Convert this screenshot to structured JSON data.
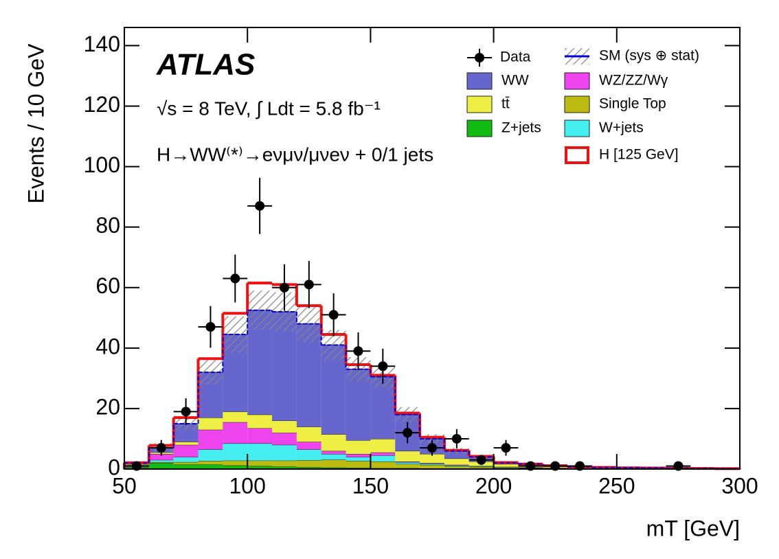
{
  "chart_data": {
    "type": "stacked_histogram",
    "title": "ATLAS",
    "annotations": [
      "√s = 8 TeV, ∫ Ldt = 5.8 fb⁻¹",
      "H→WW⁽*⁾→eνμν/μνeν + 0/1 jets"
    ],
    "x_label": "mT [GeV]",
    "y_label": "Events / 10 GeV",
    "bins": [
      50,
      60,
      70,
      80,
      90,
      100,
      110,
      120,
      130,
      140,
      150,
      160,
      170,
      180,
      190,
      200,
      210,
      220,
      230,
      240,
      250,
      260,
      270,
      280,
      290,
      300
    ],
    "xlim": [
      50,
      300
    ],
    "xticks": [
      50,
      100,
      150,
      200,
      250,
      300
    ],
    "ylim": [
      0,
      146
    ],
    "yticks": [
      0,
      20,
      40,
      60,
      80,
      100,
      120,
      140
    ],
    "series": [
      {
        "name": "Z+jets",
        "color": "#11bb11",
        "values": [
          0.5,
          2,
          1.5,
          1.5,
          1.2,
          1,
          0.8,
          0.6,
          0.5,
          0.4,
          0.3,
          0.3,
          0.2,
          0.1,
          0.1,
          0.05,
          0.05,
          0,
          0,
          0,
          0,
          0,
          0,
          0,
          0
        ]
      },
      {
        "name": "Single Top",
        "color": "#bbbb11",
        "values": [
          0.2,
          0.3,
          0.8,
          1.2,
          1.6,
          1.8,
          2,
          2.3,
          2.6,
          2.3,
          2.2,
          1.4,
          1.2,
          0.8,
          0.6,
          0.4,
          0.3,
          0.2,
          0.1,
          0.1,
          0.05,
          0.05,
          0.05,
          0,
          0
        ]
      },
      {
        "name": "W+jets",
        "color": "#44eeee",
        "values": [
          0.2,
          0.7,
          1.7,
          3.8,
          5.7,
          5.7,
          5.2,
          3.6,
          1.9,
          1.3,
          2,
          0.6,
          0.4,
          0.3,
          0.2,
          0.2,
          0.1,
          0.1,
          0.05,
          0.05,
          0,
          0,
          0,
          0,
          0
        ]
      },
      {
        "name": "WZ/ZZ/Wγ",
        "color": "#ee44ee",
        "values": [
          0.4,
          2,
          4,
          6.5,
          7,
          5,
          4,
          2.5,
          1,
          1,
          1,
          0.2,
          0.2,
          0.2,
          0.1,
          0.1,
          0.1,
          0.1,
          0.05,
          0.05,
          0.05,
          0,
          0,
          0,
          0
        ]
      },
      {
        "name": "tt̄",
        "color": "#eeee44",
        "values": [
          0.3,
          0.5,
          1,
          4,
          3.5,
          4.5,
          4,
          5,
          5.5,
          4.5,
          4.5,
          3.5,
          3,
          2.1,
          1.5,
          0.9,
          0.6,
          0.4,
          0.3,
          0.15,
          0.1,
          0.1,
          0.1,
          0.1,
          0.1
        ]
      },
      {
        "name": "WW",
        "color": "#6666cc",
        "values": [
          0.4,
          1.5,
          6,
          15,
          25.5,
          34.5,
          36,
          34,
          29.5,
          23.5,
          20.5,
          12,
          5,
          2.5,
          1.5,
          0.4,
          0.5,
          0.3,
          0.2,
          0.2,
          0.2,
          0.2,
          0.1,
          0.1,
          0.05
        ]
      },
      {
        "name": "H [125 GeV]",
        "color": "#ee1111",
        "values": [
          0.1,
          0.8,
          2,
          4.5,
          7,
          9,
          9,
          6,
          3.5,
          1.5,
          0.5,
          0.5,
          0.5,
          0.2,
          0.2,
          0.1,
          0,
          0,
          0,
          0,
          0,
          0,
          0,
          0,
          0
        ]
      },
      {
        "name": "SM (sys ⊕ stat)",
        "color": "#0000dd",
        "values": [
          0.5,
          1.5,
          2,
          4,
          6,
          6.5,
          6.5,
          6,
          5,
          4,
          3.5,
          2.5,
          1.5,
          1,
          0.6,
          0.4,
          0.3,
          0.2,
          0.1,
          0.1,
          0.1,
          0.1,
          0.05,
          0.05,
          0.05
        ]
      }
    ],
    "data": {
      "name": "Data",
      "color": "#000000",
      "x": [
        55,
        65,
        75,
        85,
        95,
        105,
        115,
        125,
        135,
        145,
        155,
        165,
        175,
        185,
        195,
        205,
        215,
        225,
        235,
        275
      ],
      "values": [
        1,
        7,
        19,
        47,
        63,
        87,
        60,
        61,
        51,
        39,
        34,
        12,
        7,
        10,
        3,
        7,
        1,
        1,
        1,
        1
      ],
      "errors": [
        1,
        2.6,
        4.4,
        6.9,
        7.9,
        9.3,
        7.7,
        7.8,
        7.1,
        6.2,
        5.8,
        3.5,
        2.6,
        3.2,
        1.7,
        2.6,
        1,
        1,
        1,
        1
      ]
    }
  }
}
